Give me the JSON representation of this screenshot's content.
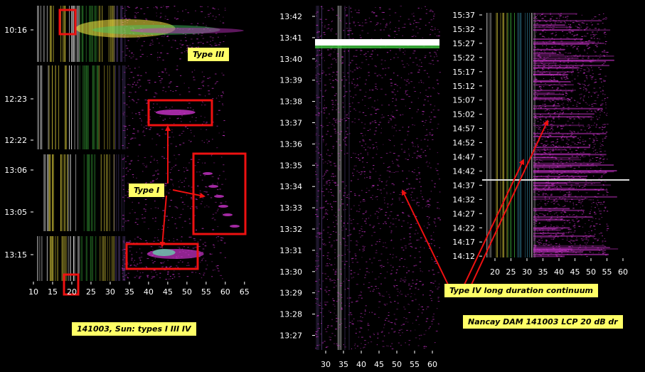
{
  "chart_data": [
    {
      "id": "left",
      "type": "heatmap",
      "panels": [
        {
          "time_ticks": [
            "10:16"
          ]
        },
        {
          "time_ticks": [
            "12:23",
            "12:22"
          ]
        },
        {
          "time_ticks": [
            "13:06",
            "13:05"
          ]
        },
        {
          "time_ticks": [
            "13:15"
          ]
        }
      ],
      "x_ticks": [
        10,
        15,
        20,
        25,
        30,
        35,
        40,
        45,
        50,
        55,
        60,
        65
      ],
      "xlim": [
        10,
        68
      ]
    },
    {
      "id": "middle",
      "type": "heatmap",
      "y_ticks": [
        "13:42",
        "13:41",
        "13:40",
        "13:39",
        "13:38",
        "13:37",
        "13:36",
        "13:35",
        "13:34",
        "13:33",
        "13:32",
        "13:31",
        "13:30",
        "13:29",
        "13:28",
        "13:27"
      ],
      "x_ticks": [
        30,
        35,
        40,
        45,
        50,
        55,
        60
      ],
      "xlim": [
        27,
        62
      ]
    },
    {
      "id": "right",
      "type": "heatmap",
      "y_ticks": [
        "15:37",
        "15:32",
        "15:27",
        "15:22",
        "15:17",
        "15:12",
        "15:07",
        "15:02",
        "14:57",
        "14:52",
        "14:47",
        "14:42",
        "14:37",
        "14:32",
        "14:27",
        "14:22",
        "14:17",
        "14:12"
      ],
      "x_ticks": [
        20,
        25,
        30,
        35,
        40,
        45,
        50,
        55,
        60
      ],
      "xlim": [
        16,
        62
      ]
    }
  ],
  "annotations": {
    "type_iii": "Type III",
    "type_i": "Type I",
    "type_iv": "Type IV long duration continuum",
    "caption_left": "141003, Sun: types I III IV",
    "caption_right": "Nancay DAM 141003 LCP 20 dB dr"
  },
  "colors": {
    "background": "#000000",
    "box": "#ee1111",
    "arrow": "#ee1111",
    "callout_fill": "#ffff66",
    "axis_text": "#ffffff",
    "emission": "#cc33cc"
  }
}
